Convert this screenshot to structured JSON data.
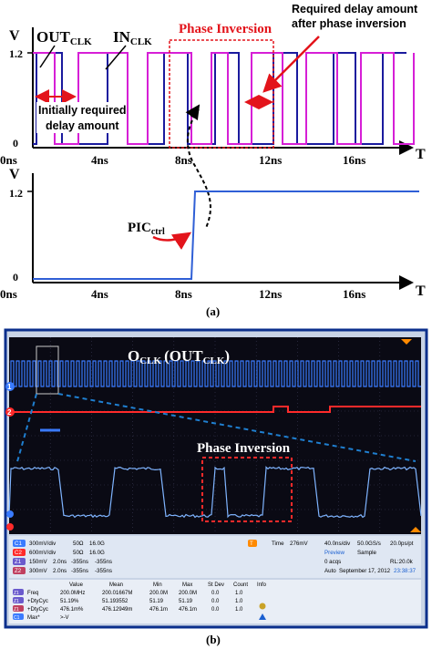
{
  "panel_a": {
    "top": {
      "axis_label_y": "V",
      "axis_label_x": "T",
      "ytick_high": "1.2",
      "ytick_low": "0",
      "xticks": [
        "0ns",
        "4ns",
        "8ns",
        "12ns",
        "16ns"
      ],
      "out_clk_label": "OUT",
      "out_clk_sub": "CLK",
      "in_clk_label": "IN",
      "in_clk_sub": "CLK",
      "phase_inversion_label": "Phase Inversion",
      "required_delay_after_line1": "Required delay amount",
      "required_delay_after_line2": "after phase inversion",
      "initial_delay_line1": "Initially required",
      "initial_delay_line2": "delay amount",
      "colors": {
        "out_clk": "#d61fd6",
        "in_clk": "#1a1a9e",
        "annotation": "#e3141b"
      }
    },
    "bottom": {
      "axis_label_y": "V",
      "axis_label_x": "T",
      "ytick_high": "1.2",
      "ytick_low": "0",
      "xticks": [
        "0ns",
        "4ns",
        "8ns",
        "12ns",
        "16ns"
      ],
      "pic_label": "PIC",
      "pic_sub": "ctrl",
      "colors": {
        "pic": "#2f5fd6"
      }
    },
    "caption": "(a)"
  },
  "panel_b": {
    "top_label": "O",
    "top_label_sub": "CLK",
    "top_label_paren": "(OUT",
    "top_label_paren_sub": "CLK",
    "top_label_close": ")",
    "phase_inversion_label": "Phase Inversion",
    "channel_markers": [
      "1",
      "2"
    ],
    "channel_settings": [
      {
        "badge": "C1",
        "scale": "300mV/div",
        "impedance": "50Ω",
        "bw": "16.0G"
      },
      {
        "badge": "C2",
        "scale": "600mV/div",
        "impedance": "50Ω",
        "bw": "16.0G"
      },
      {
        "badge": "Z1",
        "scale": "150mV",
        "time": "2.0ns",
        "offset1": "-355ns",
        "offset2": "-355ns"
      },
      {
        "badge": "Z2",
        "scale": "300mV",
        "time": "2.0ns",
        "offset1": "-355ns",
        "offset2": "-355ns"
      }
    ],
    "trigger": {
      "badge": "T",
      "label": "Time",
      "value": "276mV"
    },
    "acquisition": {
      "timebase": "40.0ns/div",
      "sample_rate": "50.0GS/s",
      "resolution": "20.0ps/pt",
      "preview": "Preview",
      "sample": "Sample",
      "acqs": "0 acqs",
      "rl": "RL:20.0k",
      "mode": "Auto",
      "date": "September 17, 2012",
      "clock": "23:38:37"
    },
    "measurements": {
      "headers": [
        "Value",
        "Mean",
        "Min",
        "Max",
        "St Dev",
        "Count",
        "Info"
      ],
      "rows": [
        {
          "badge": "Z1",
          "name": "Freq",
          "value": "200.0MHz",
          "mean": "200.01667M",
          "min": "200.0M",
          "max": "200.0M",
          "stdev": "0.0",
          "count": "1.0"
        },
        {
          "badge": "Z1",
          "name": "+DtyCyc",
          "value": "51.19%",
          "mean": "51.193552",
          "min": "51.19",
          "max": "51.19",
          "stdev": "0.0",
          "count": "1.0"
        },
        {
          "badge": "Z1",
          "name": "+DtyCyc",
          "value": "476.1m%",
          "mean": "476.12949m",
          "min": "476.1m",
          "max": "476.1m",
          "stdev": "0.0",
          "count": "1.0"
        },
        {
          "badge": "C1",
          "name": "Max*",
          "value": ">-V",
          "mean": "",
          "min": "",
          "max": "",
          "stdev": "",
          "count": ""
        }
      ]
    },
    "caption": "(b)",
    "colors": {
      "ch1": "#3a7bff",
      "ch2": "#ff2a2a",
      "frame": "#0b2f8c",
      "screen": "#0a0a14"
    }
  }
}
